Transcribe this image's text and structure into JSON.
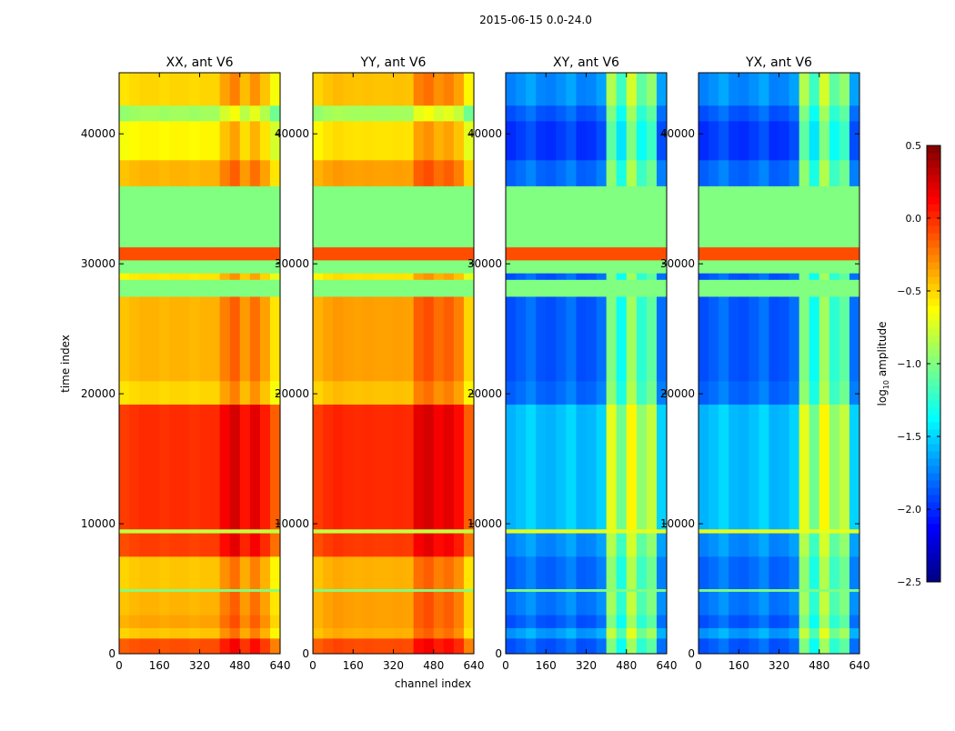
{
  "chart_data": {
    "type": "heatmap",
    "title": "2015-06-15 0.0-24.0",
    "xlabel": "channel index",
    "ylabel": "time index",
    "xlim": [
      0,
      640
    ],
    "ylim": [
      0,
      44700
    ],
    "xticks": [
      0,
      160,
      320,
      480,
      640
    ],
    "yticks": [
      0,
      10000,
      20000,
      30000,
      40000
    ],
    "colormap": "jet",
    "colorbar": {
      "label_main": "log",
      "label_sub": "10",
      "label_rest": " amplitude",
      "range": [
        -2.5,
        0.5
      ],
      "ticks": [
        0.5,
        0.0,
        -0.5,
        -1.0,
        -1.5,
        -2.0,
        -2.5
      ],
      "tick_labels": [
        "0.5",
        "0.0",
        "−0.5",
        "−1.0",
        "−1.5",
        "−2.0",
        "−2.5"
      ]
    },
    "channel_bin_width": 40,
    "panels": [
      {
        "title": "XX, ant V6",
        "key": "XX"
      },
      {
        "title": "YY, ant V6",
        "key": "YY"
      },
      {
        "title": "XY, ant V6",
        "key": "XY"
      },
      {
        "title": "YX, ant V6",
        "key": "YX"
      }
    ],
    "channel_offsets": {
      "XX": [
        0,
        0.03,
        0.05,
        0.05,
        0.03,
        0.05,
        0.05,
        0.03,
        0.05,
        0.05,
        0.2,
        0.3,
        0.12,
        0.25,
        0.1,
        -0.1
      ],
      "YY": [
        0,
        0.05,
        0.08,
        0.06,
        0.05,
        0.06,
        0.05,
        0.05,
        0.06,
        0.05,
        0.25,
        0.3,
        0.2,
        0.25,
        0.15,
        -0.1
      ],
      "XY": [
        0,
        0.05,
        0.12,
        0.02,
        0,
        0.05,
        0.12,
        0,
        0.02,
        0.1,
        0.9,
        0.55,
        1.0,
        0.65,
        0.8,
        0.1
      ],
      "YX": [
        0,
        0.05,
        0.12,
        0.02,
        0,
        0.05,
        0.12,
        0,
        0.02,
        0.1,
        0.9,
        0.55,
        1.0,
        0.65,
        0.8,
        0.1
      ]
    },
    "time_bands": [
      {
        "t": [
          0,
          1200
        ],
        "XX": -0.15,
        "YY": -0.15,
        "XY": -1.9,
        "YX": -1.9
      },
      {
        "t": [
          1200,
          2000
        ],
        "XX": -0.5,
        "YY": -0.45,
        "XY": -1.7,
        "YX": -1.7
      },
      {
        "t": [
          2000,
          3000
        ],
        "XX": -0.4,
        "YY": -0.4,
        "XY": -1.9,
        "YX": -1.9
      },
      {
        "t": [
          3000,
          4800
        ],
        "XX": -0.45,
        "YY": -0.4,
        "XY": -1.8,
        "YX": -1.8
      },
      {
        "t": [
          4800,
          5000
        ],
        "XX": -1.0,
        "YY": -1.0,
        "XY": -1.0,
        "YX": -1.0,
        "flagged": true
      },
      {
        "t": [
          5000,
          7500
        ],
        "XX": -0.5,
        "YY": -0.45,
        "XY": -1.85,
        "YX": -1.85
      },
      {
        "t": [
          7500,
          9300
        ],
        "XX": -0.1,
        "YY": -0.1,
        "XY": -1.75,
        "YX": -1.75
      },
      {
        "t": [
          9300,
          9600
        ],
        "XX": -0.8,
        "YY": -0.8,
        "XY": -0.7,
        "YX": -0.7,
        "flagged": true
      },
      {
        "t": [
          9600,
          19200
        ],
        "XX": -0.05,
        "YY": -0.05,
        "XY": -1.6,
        "YX": -1.6
      },
      {
        "t": [
          19200,
          21000
        ],
        "XX": -0.55,
        "YY": -0.5,
        "XY": -1.85,
        "YX": -1.85
      },
      {
        "t": [
          21000,
          27500
        ],
        "XX": -0.45,
        "YY": -0.4,
        "XY": -1.9,
        "YX": -1.9
      },
      {
        "t": [
          27500,
          28800
        ],
        "XX": -1.0,
        "YY": -1.0,
        "XY": -1.0,
        "YX": -1.0,
        "flagged": true
      },
      {
        "t": [
          28800,
          29300
        ],
        "XX": -0.6,
        "YY": -0.6,
        "XY": -1.9,
        "YX": -1.9
      },
      {
        "t": [
          29300,
          30300
        ],
        "XX": -1.0,
        "YY": -1.0,
        "XY": -1.0,
        "YX": -1.0,
        "flagged": true
      },
      {
        "t": [
          30300,
          31300
        ],
        "XX": -0.1,
        "YY": -0.1,
        "XY": -0.1,
        "YX": -0.1,
        "flagged": true
      },
      {
        "t": [
          31300,
          36000
        ],
        "XX": -1.0,
        "YY": -1.0,
        "XY": -1.0,
        "YX": -1.0,
        "flagged": true
      },
      {
        "t": [
          36000,
          38000
        ],
        "XX": -0.45,
        "YY": -0.4,
        "XY": -1.85,
        "YX": -1.85
      },
      {
        "t": [
          38000,
          41000
        ],
        "XX": -0.65,
        "YY": -0.6,
        "XY": -2.0,
        "YX": -2.0
      },
      {
        "t": [
          41000,
          42200
        ],
        "XX": -0.95,
        "YY": -0.95,
        "XY": -1.9,
        "YX": -1.9
      },
      {
        "t": [
          42200,
          44700
        ],
        "XX": -0.55,
        "YY": -0.5,
        "XY": -1.75,
        "YX": -1.75
      }
    ]
  }
}
